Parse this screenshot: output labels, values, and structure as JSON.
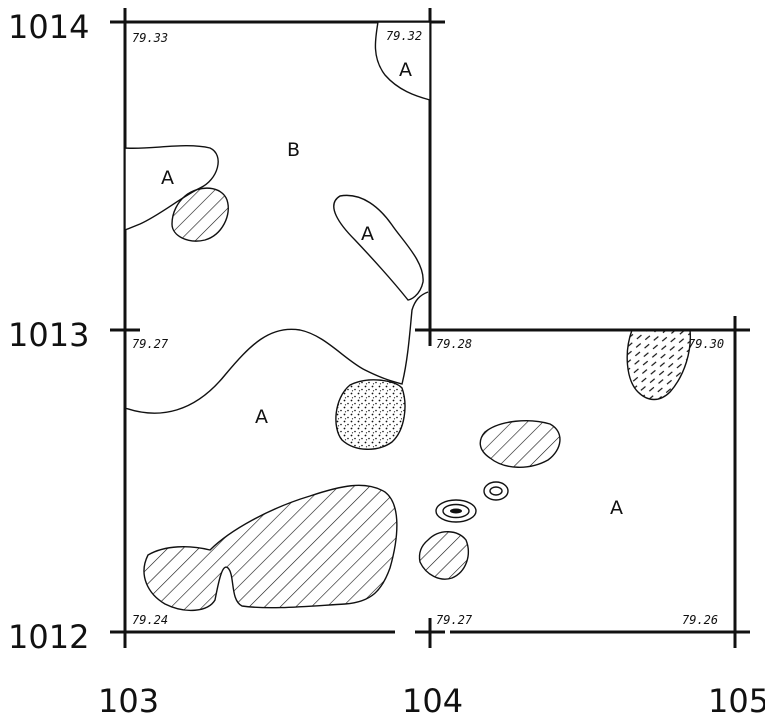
{
  "grid_labels": {
    "y_1014": "1014",
    "y_1013": "1013",
    "y_1012": "1012",
    "x_103": "103",
    "x_104": "104",
    "x_105": "105"
  },
  "elevations": {
    "nw_top": "79.33",
    "ne_top": "79.32",
    "w_mid": "79.27",
    "c_mid": "79.28",
    "e_mid": "79.30",
    "w_bottom": "79.24",
    "c_bottom": "79.27",
    "e_bottom": "79.26"
  },
  "zones": {
    "a_top_right": "A",
    "b_upper": "B",
    "a_left": "A",
    "a_middle": "A",
    "a_lower_left": "A",
    "a_lower_right": "A"
  }
}
